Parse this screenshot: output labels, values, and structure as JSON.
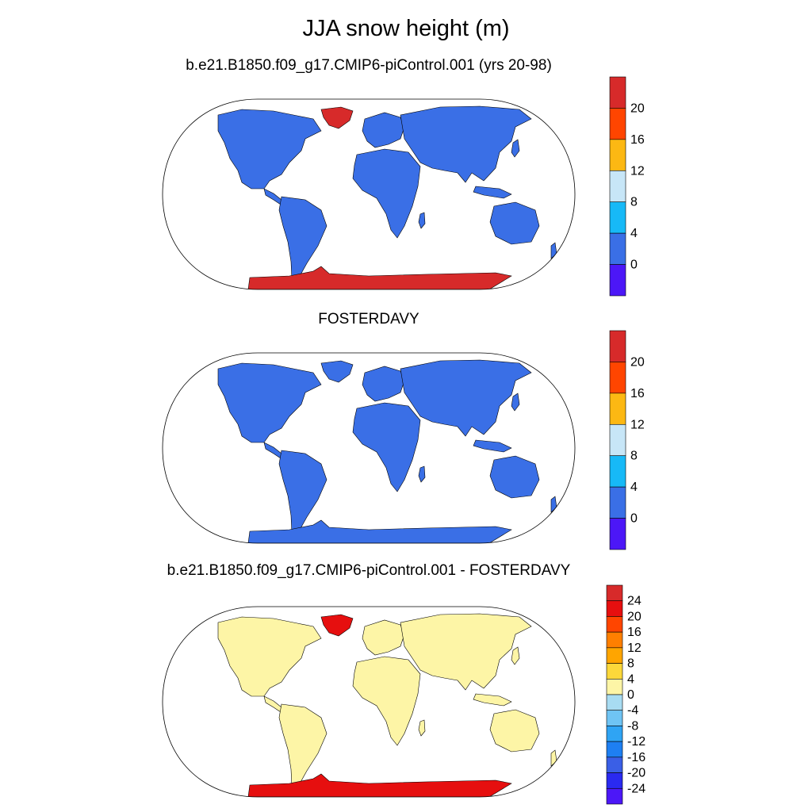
{
  "title": "JJA snow height (m)",
  "panels": [
    {
      "id": "model",
      "title": "b.e21.B1850.f09_g17.CMIP6-piControl.001 (yrs 20-98)",
      "land_color": "#3a6fe6",
      "greenland_color": "#d72a2a",
      "antarctica_color": "#d72a2a",
      "colorbar": {
        "labels": [
          "20",
          "16",
          "12",
          "8",
          "4",
          "0"
        ],
        "colors": [
          "#d72a2a",
          "#ff4500",
          "#fcb813",
          "#c7e6f7",
          "#17b9f7",
          "#3a6fe6",
          "#4c17f7"
        ]
      }
    },
    {
      "id": "obs",
      "title": "FOSTERDAVY",
      "land_color": "#3a6fe6",
      "greenland_color": "#3a6fe6",
      "antarctica_color": "#3a6fe6",
      "colorbar": {
        "labels": [
          "20",
          "16",
          "12",
          "8",
          "4",
          "0"
        ],
        "colors": [
          "#d72a2a",
          "#ff4500",
          "#fcb813",
          "#c7e6f7",
          "#17b9f7",
          "#3a6fe6",
          "#4c17f7"
        ]
      }
    },
    {
      "id": "diff",
      "title": "b.e21.B1850.f09_g17.CMIP6-piControl.001 - FOSTERDAVY",
      "land_color": "#fdf5a6",
      "greenland_color": "#e60f0f",
      "antarctica_color": "#e60f0f",
      "colorbar": {
        "labels": [
          "24",
          "20",
          "16",
          "12",
          "8",
          "4",
          "0",
          "-4",
          "-8",
          "-12",
          "-16",
          "-20",
          "-24"
        ],
        "colors": [
          "#d72a2a",
          "#e60f0f",
          "#ff4500",
          "#ff7f00",
          "#ffa500",
          "#fcd83a",
          "#fdf5a6",
          "#a8dcf2",
          "#6fc4f4",
          "#2fa4f4",
          "#1e7ff2",
          "#3a5fe6",
          "#2a2af0",
          "#4c17f7"
        ]
      }
    }
  ]
}
